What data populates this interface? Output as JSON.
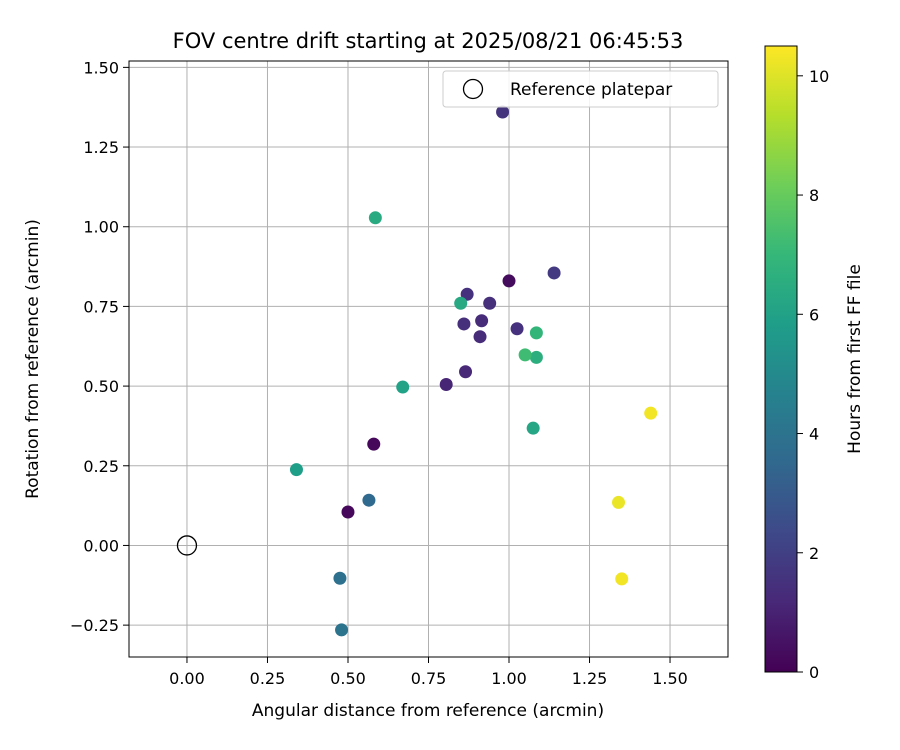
{
  "chart_data": {
    "type": "scatter",
    "title": "FOV centre drift starting at 2025/08/21 06:45:53",
    "xlabel": "Angular distance from reference (arcmin)",
    "ylabel": "Rotation from reference (arcmin)",
    "xlim": [
      -0.18,
      1.68
    ],
    "ylim": [
      -0.35,
      1.52
    ],
    "x_ticks": [
      0.0,
      0.25,
      0.5,
      0.75,
      1.0,
      1.25,
      1.5
    ],
    "x_tick_labels": [
      "0.00",
      "0.25",
      "0.50",
      "0.75",
      "1.00",
      "1.25",
      "1.50"
    ],
    "y_ticks": [
      -0.25,
      0.0,
      0.25,
      0.5,
      0.75,
      1.0,
      1.25,
      1.5
    ],
    "y_tick_labels": [
      "−0.25",
      "0.00",
      "0.25",
      "0.50",
      "0.75",
      "1.00",
      "1.25",
      "1.50"
    ],
    "grid": true,
    "legend": {
      "placement": "top-right",
      "entries": [
        "Reference platepar"
      ]
    },
    "reference_point": {
      "x": 0.0,
      "y": 0.0
    },
    "colorbar": {
      "label": "Hours from first FF file",
      "range": [
        0,
        10.5
      ],
      "ticks": [
        0,
        2,
        4,
        6,
        8,
        10
      ],
      "tick_labels": [
        "0",
        "2",
        "4",
        "6",
        "8",
        "10"
      ],
      "colormap": "viridis"
    },
    "points": [
      {
        "x": 0.5,
        "y": 0.105,
        "hours": 0.2
      },
      {
        "x": 0.58,
        "y": 0.318,
        "hours": 0.2
      },
      {
        "x": 1.0,
        "y": 0.83,
        "hours": 0.3
      },
      {
        "x": 0.805,
        "y": 0.505,
        "hours": 1.1
      },
      {
        "x": 0.865,
        "y": 0.545,
        "hours": 1.2
      },
      {
        "x": 0.91,
        "y": 0.655,
        "hours": 1.3
      },
      {
        "x": 0.915,
        "y": 0.705,
        "hours": 1.3
      },
      {
        "x": 0.86,
        "y": 0.695,
        "hours": 1.4
      },
      {
        "x": 0.94,
        "y": 0.76,
        "hours": 1.4
      },
      {
        "x": 0.87,
        "y": 0.788,
        "hours": 1.5
      },
      {
        "x": 1.025,
        "y": 0.68,
        "hours": 1.5
      },
      {
        "x": 0.98,
        "y": 1.36,
        "hours": 1.6
      },
      {
        "x": 1.14,
        "y": 0.855,
        "hours": 1.8
      },
      {
        "x": 0.565,
        "y": 0.142,
        "hours": 3.6
      },
      {
        "x": 0.475,
        "y": -0.103,
        "hours": 3.9
      },
      {
        "x": 0.48,
        "y": -0.265,
        "hours": 4.0
      },
      {
        "x": 0.34,
        "y": 0.238,
        "hours": 5.9
      },
      {
        "x": 0.67,
        "y": 0.497,
        "hours": 6.0
      },
      {
        "x": 1.075,
        "y": 0.368,
        "hours": 6.2
      },
      {
        "x": 0.85,
        "y": 0.76,
        "hours": 6.3
      },
      {
        "x": 0.585,
        "y": 1.028,
        "hours": 6.4
      },
      {
        "x": 1.085,
        "y": 0.59,
        "hours": 6.6
      },
      {
        "x": 1.085,
        "y": 0.667,
        "hours": 6.9
      },
      {
        "x": 1.05,
        "y": 0.598,
        "hours": 7.2
      },
      {
        "x": 1.34,
        "y": 0.135,
        "hours": 10.2
      },
      {
        "x": 1.35,
        "y": -0.105,
        "hours": 10.3
      },
      {
        "x": 1.44,
        "y": 0.415,
        "hours": 10.3
      }
    ]
  }
}
